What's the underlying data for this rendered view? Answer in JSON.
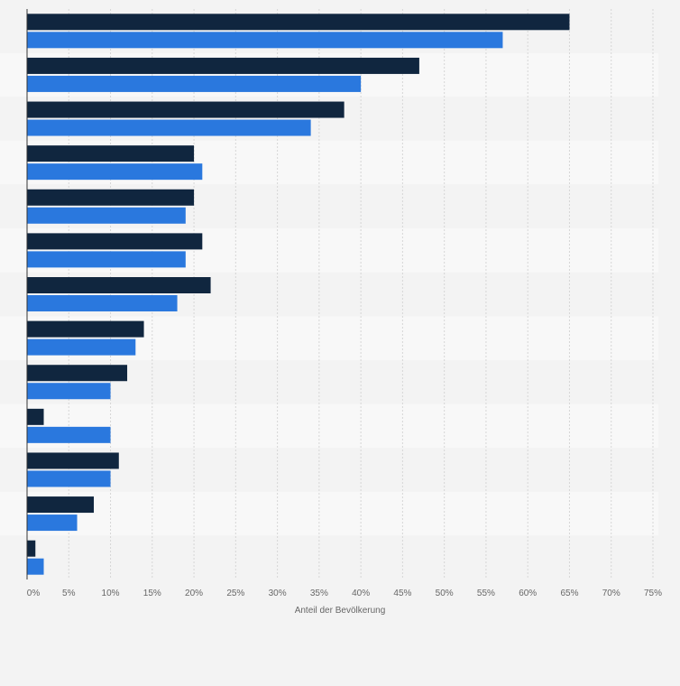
{
  "chart_data": {
    "type": "bar",
    "orientation": "horizontal",
    "title": "",
    "xlabel": "Anteil der Bevölkerung",
    "ylabel": "",
    "xlim": [
      0,
      75
    ],
    "x_ticks": [
      "0%",
      "5%",
      "10%",
      "15%",
      "20%",
      "25%",
      "30%",
      "35%",
      "40%",
      "45%",
      "50%",
      "55%",
      "60%",
      "65%",
      "70%",
      "75%"
    ],
    "grid": true,
    "categories": [
      "",
      "",
      "",
      "",
      "",
      "",
      "",
      "",
      "",
      "",
      "",
      "",
      ""
    ],
    "series": [
      {
        "color": "#10263f",
        "values": [
          65,
          47,
          38,
          20,
          20,
          21,
          22,
          14,
          12,
          2,
          11,
          8,
          1
        ]
      },
      {
        "color": "#2a78de",
        "values": [
          57,
          40,
          34,
          21,
          19,
          19,
          18,
          13,
          10,
          10,
          10,
          6,
          2
        ]
      }
    ]
  }
}
